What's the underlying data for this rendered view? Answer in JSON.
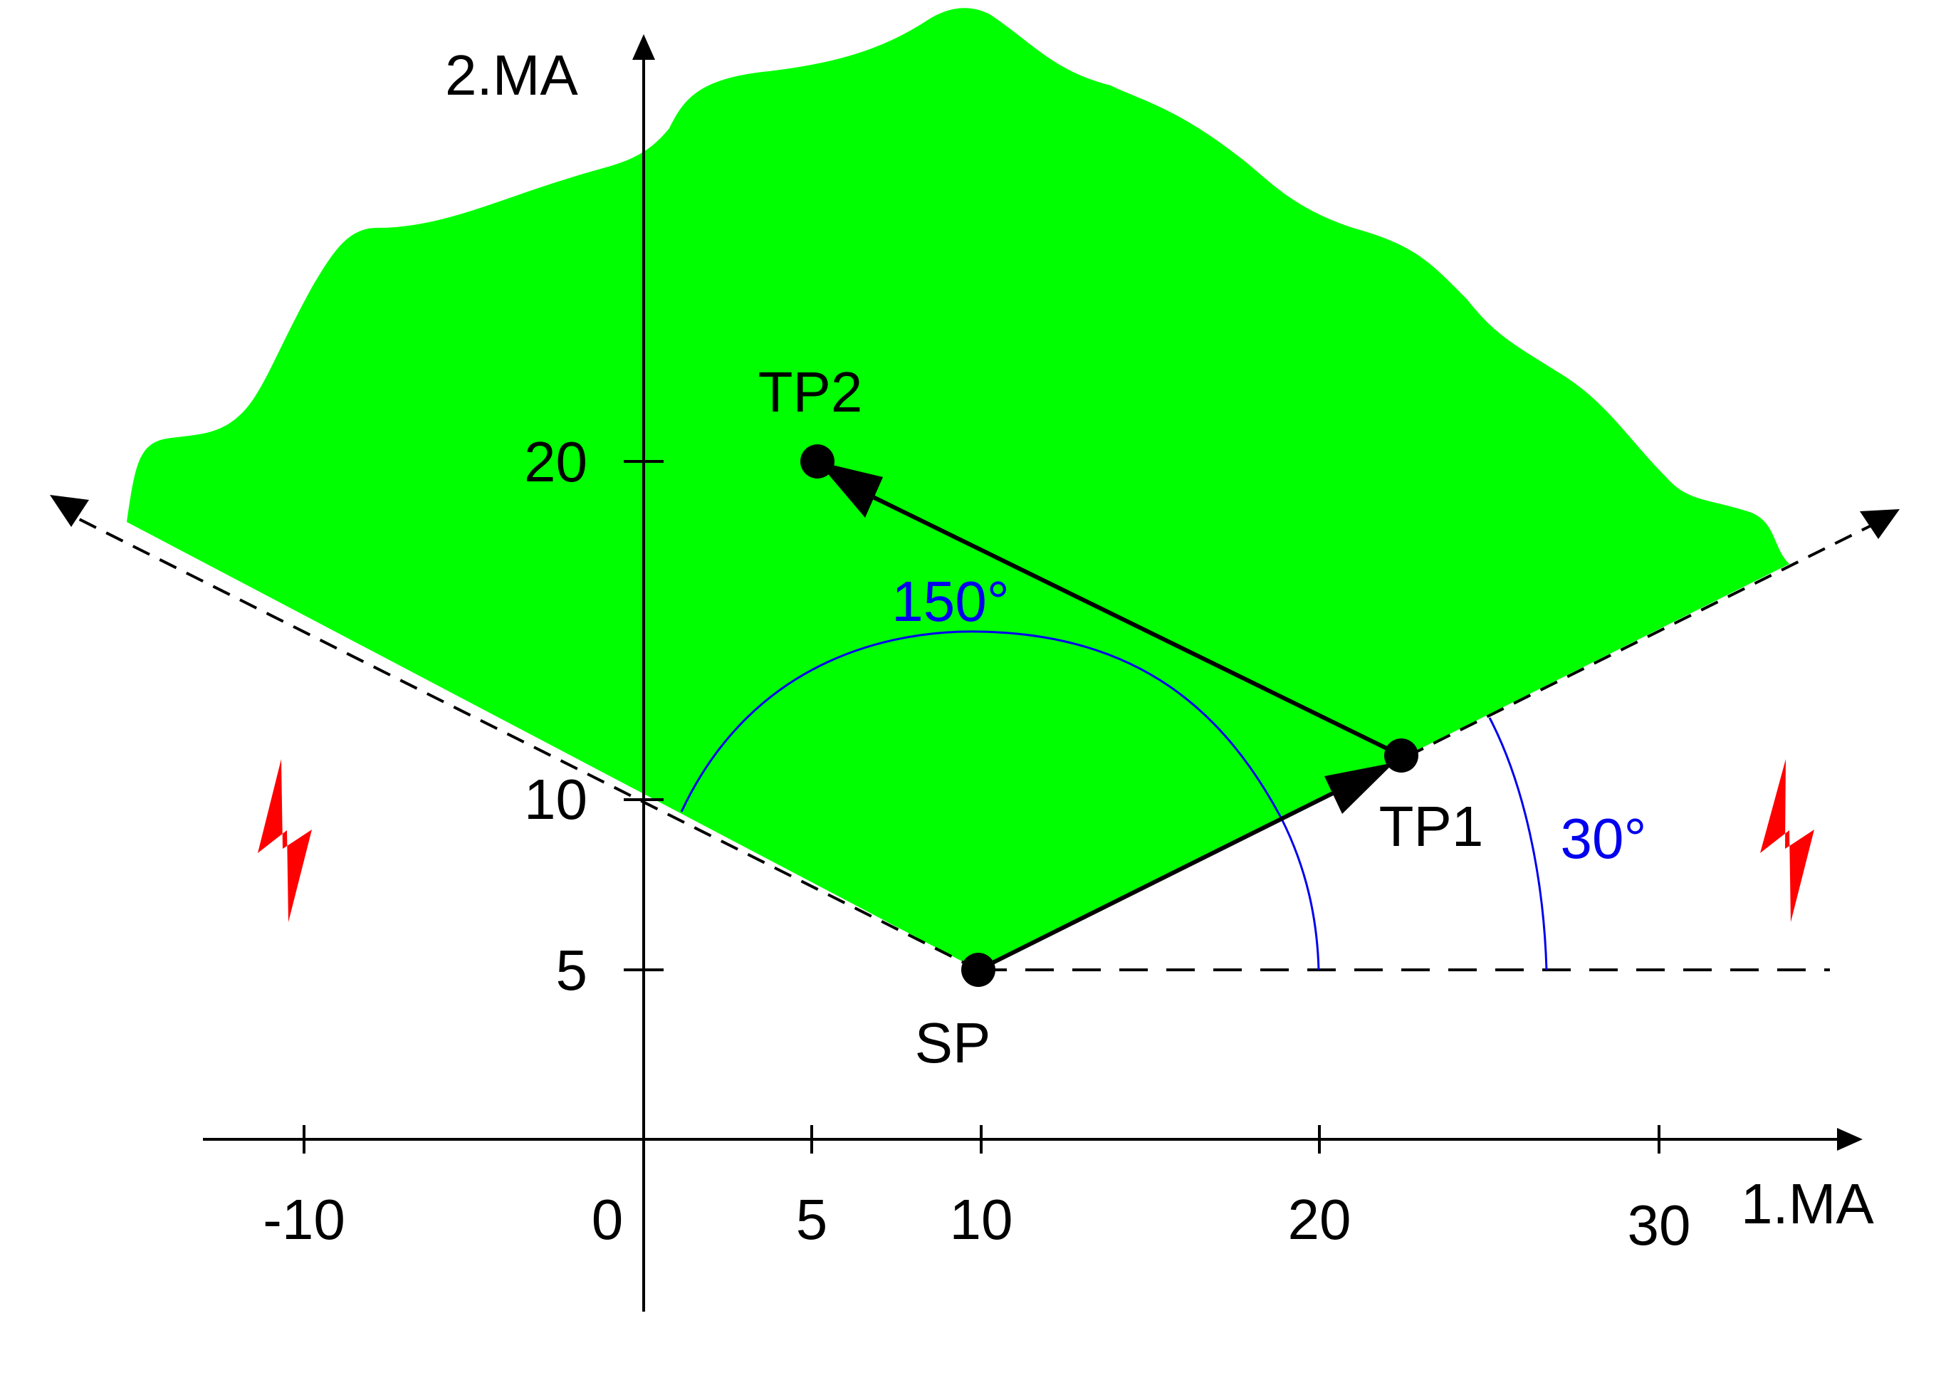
{
  "diagram": {
    "axis_x_label": "1.MA",
    "axis_y_label": "2.MA",
    "x_ticks": [
      "-10",
      "0",
      "5",
      "10",
      "20",
      "30"
    ],
    "y_ticks": [
      "5",
      "10",
      "20"
    ],
    "points": {
      "sp": "SP",
      "tp1": "TP1",
      "tp2": "TP2"
    },
    "angles": {
      "wide": "150°",
      "narrow": "30°"
    },
    "colors": {
      "region": "#00ff00",
      "arc": "#0000ee",
      "lightning": "#ff0000",
      "ink": "#000000"
    },
    "icons": [
      "lightning-icon",
      "lightning-icon"
    ]
  }
}
